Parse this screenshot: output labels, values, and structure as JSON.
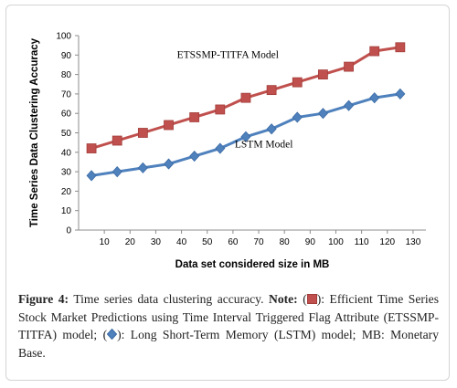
{
  "chart_data": {
    "type": "line",
    "x": [
      5,
      15,
      25,
      35,
      45,
      55,
      65,
      75,
      85,
      95,
      105,
      115,
      125
    ],
    "series": [
      {
        "name": "ETSSMP-TITFA Model",
        "color": "#c0504d",
        "marker": "square",
        "values": [
          42,
          46,
          50,
          54,
          58,
          62,
          68,
          72,
          76,
          80,
          84,
          92,
          94
        ]
      },
      {
        "name": "LSTM Model",
        "color": "#4f81bd",
        "marker": "diamond",
        "values": [
          28,
          30,
          32,
          34,
          38,
          42,
          48,
          52,
          58,
          60,
          64,
          68,
          70
        ]
      }
    ],
    "xticks": [
      10,
      20,
      30,
      40,
      50,
      60,
      70,
      80,
      90,
      100,
      110,
      120,
      130
    ],
    "yticks": [
      0,
      10,
      20,
      30,
      40,
      50,
      60,
      70,
      80,
      90,
      100
    ],
    "xlim": [
      0,
      135
    ],
    "ylim": [
      0,
      100
    ],
    "xlabel": "Data set considered size in MB",
    "ylabel": "Time Series Data Clustering Accuracy",
    "title": "",
    "grid": false,
    "legend": "inline labels"
  },
  "caption": {
    "figure_label": "Figure 4:",
    "text": " Time series data clustering accuracy. ",
    "note_label": "Note:",
    "open_paren": " (",
    "series1_desc": "): Efficient Time Series Stock Market Predictions using Time Interval Triggered Flag Attribute (ETSSMP-TITFA) model; (",
    "series2_desc": "): Long Short-Term Memory (LSTM) model; MB: Monetary Base."
  }
}
